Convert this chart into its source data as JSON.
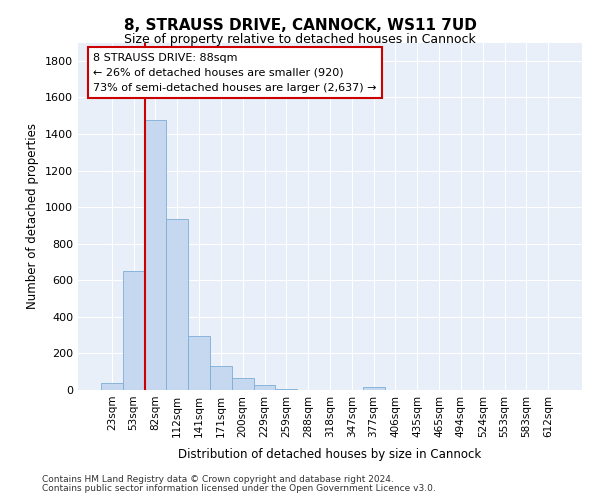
{
  "title": "8, STRAUSS DRIVE, CANNOCK, WS11 7UD",
  "subtitle": "Size of property relative to detached houses in Cannock",
  "xlabel": "Distribution of detached houses by size in Cannock",
  "ylabel": "Number of detached properties",
  "bin_labels": [
    "23sqm",
    "53sqm",
    "82sqm",
    "112sqm",
    "141sqm",
    "171sqm",
    "200sqm",
    "229sqm",
    "259sqm",
    "288sqm",
    "318sqm",
    "347sqm",
    "377sqm",
    "406sqm",
    "435sqm",
    "465sqm",
    "494sqm",
    "524sqm",
    "553sqm",
    "583sqm",
    "612sqm"
  ],
  "bar_values": [
    40,
    650,
    1475,
    935,
    295,
    130,
    65,
    25,
    5,
    0,
    0,
    0,
    15,
    0,
    0,
    0,
    0,
    0,
    0,
    0,
    0
  ],
  "bar_color": "#c5d8f0",
  "bar_edge_color": "#7aaed6",
  "ylim": [
    0,
    1900
  ],
  "yticks": [
    0,
    200,
    400,
    600,
    800,
    1000,
    1200,
    1400,
    1600,
    1800
  ],
  "vline_position": 2.0,
  "vline_color": "#cc0000",
  "annotation_text": "8 STRAUSS DRIVE: 88sqm\n← 26% of detached houses are smaller (920)\n73% of semi-detached houses are larger (2,637) →",
  "footer_line1": "Contains HM Land Registry data © Crown copyright and database right 2024.",
  "footer_line2": "Contains public sector information licensed under the Open Government Licence v3.0.",
  "fig_bg_color": "#ffffff",
  "plot_bg_color": "#e8eff8"
}
